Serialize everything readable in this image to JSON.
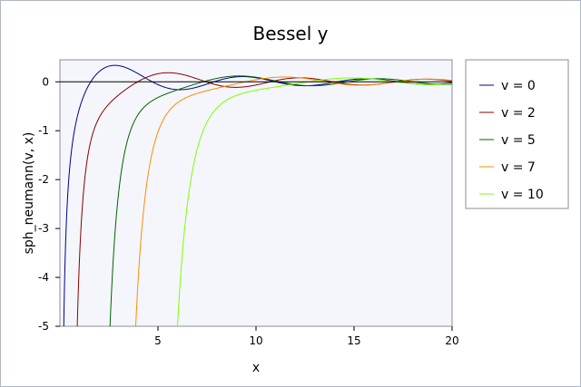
{
  "chart_data": {
    "type": "line",
    "title": "Bessel y",
    "xlabel": "x",
    "ylabel": "sph_neumann(v, x)",
    "xlim": [
      0,
      20
    ],
    "ylim": [
      -5,
      0.45
    ],
    "x_ticks": [
      5,
      10,
      15,
      20
    ],
    "y_ticks": [
      0,
      -1,
      -2,
      -3,
      -4,
      -5
    ],
    "grid": false,
    "legend_position": "right",
    "series": [
      {
        "name": "v = 0",
        "order": 0,
        "color": "#00008b"
      },
      {
        "name": "v = 2",
        "order": 2,
        "color": "#8b0000"
      },
      {
        "name": "v = 5",
        "order": 5,
        "color": "#006400"
      },
      {
        "name": "v = 7",
        "order": 7,
        "color": "#ff8c00"
      },
      {
        "name": "v = 10",
        "order": 10,
        "color": "#7fff00"
      }
    ]
  }
}
